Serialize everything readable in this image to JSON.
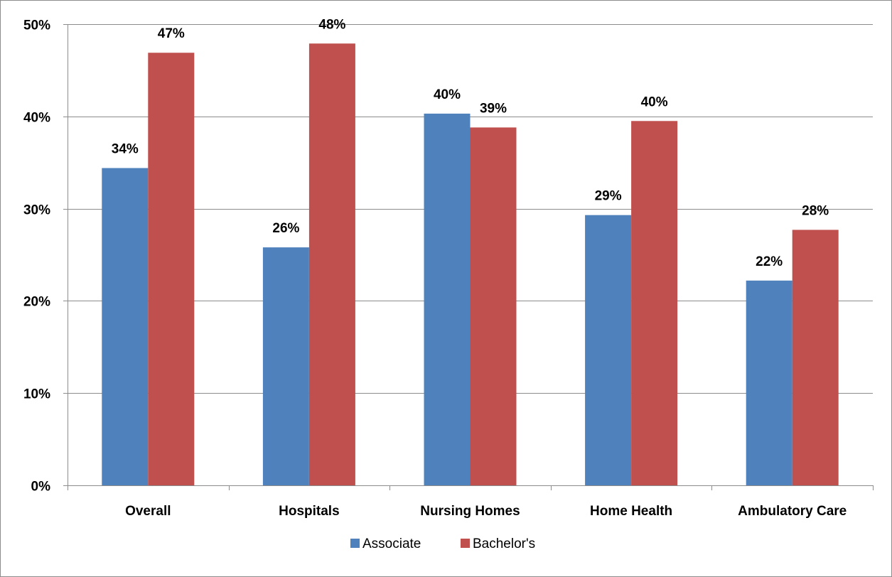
{
  "chart_data": {
    "type": "bar",
    "title": "",
    "xlabel": "",
    "ylabel": "",
    "categories": [
      "Overall",
      "Hospitals",
      "Nursing Homes",
      "Home Health",
      "Ambulatory Care"
    ],
    "series": [
      {
        "name": "Associate",
        "color": "#4f81bd",
        "values": [
          34.4,
          25.8,
          40.3,
          29.3,
          22.2
        ],
        "labels": [
          "34%",
          "26%",
          "40%",
          "29%",
          "22%"
        ]
      },
      {
        "name": "Bachelor's",
        "color": "#c0504d",
        "values": [
          46.9,
          47.9,
          38.8,
          39.5,
          27.7
        ],
        "labels": [
          "47%",
          "48%",
          "39%",
          "40%",
          "28%"
        ]
      }
    ],
    "ylim": [
      0,
      50
    ],
    "yticks": [
      0,
      10,
      20,
      30,
      40,
      50
    ],
    "ytick_labels": [
      "0%",
      "10%",
      "20%",
      "30%",
      "40%",
      "50%"
    ],
    "grid": true,
    "legend_position": "bottom"
  }
}
